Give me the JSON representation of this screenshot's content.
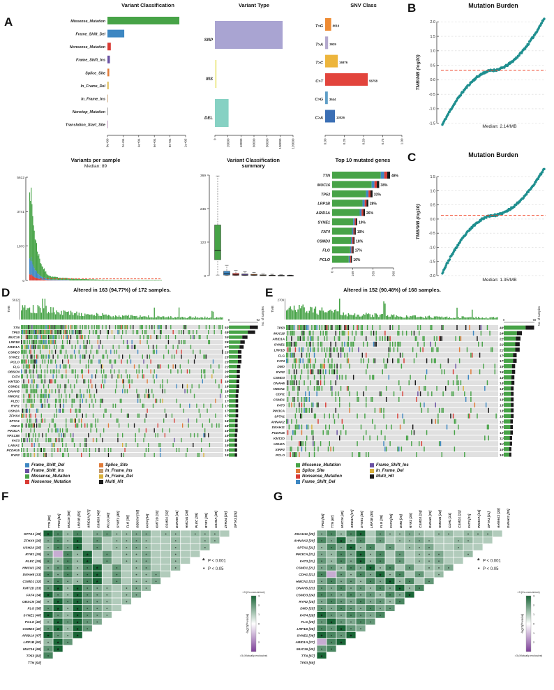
{
  "figure": {
    "panels": {
      "A": "A",
      "B": "B",
      "C": "C",
      "D": "D",
      "E": "E",
      "F": "F",
      "G": "G"
    }
  },
  "colors": {
    "vc": {
      "Missense_Mutation": "#47A347",
      "Frame_Shift_Del": "#3D87C2",
      "Nonsense_Mutation": "#D93B34",
      "Frame_Shift_Ins": "#6A51A3",
      "Splice_Site": "#E07B39",
      "In_Frame_Del": "#D9B13B",
      "In_Frame_Ins": "#C49A6C",
      "Nonstop_Mutation": "#8C8C8C",
      "Translation_Start_Site": "#B78CB7",
      "Multi_Hit": "#1A1A1A"
    },
    "snv": {
      "T>G": "#EE8B33",
      "T>A": "#B3A8CE",
      "T>C": "#EDB53C",
      "C>T": "#E2443C",
      "C>G": "#5F9EC7",
      "C>A": "#3B6FB5"
    },
    "vt": {
      "SNP": "#A9A4D2",
      "INS": "#F1EFA9",
      "DEL": "#86D1C3"
    },
    "tmb_dot": "#1F8F8F",
    "median_line": "#F04124",
    "heat_pos": "#1A6637",
    "heat_neg": "#7D3F98",
    "onco_bg": "#E0E0E0"
  },
  "chart_data": {
    "panelA": {
      "variant_classification": {
        "type": "bar",
        "title": "Variant Classification",
        "categories": [
          "Missense_Mutation",
          "Frame_Shift_Del",
          "Nonsense_Mutation",
          "Frame_Shift_Ins",
          "Splice_Site",
          "In_Frame_Del",
          "In_Frame_Ins",
          "Nonstop_Mutation",
          "Translation_Start_Site"
        ],
        "values": [
          92000,
          21500,
          4300,
          3100,
          2300,
          1500,
          700,
          280,
          150
        ],
        "xmax": 100000,
        "xticks": [
          "0e+00",
          "2e+04",
          "4e+04",
          "6e+04",
          "8e+04",
          "1e+05"
        ]
      },
      "variant_type": {
        "type": "bar",
        "title": "Variant Type",
        "categories": [
          "SNP",
          "INS",
          "DEL"
        ],
        "values": [
          104000,
          2600,
          21000
        ],
        "xmax": 120000,
        "xticks": [
          "0",
          "20000",
          "40000",
          "60000",
          "80000",
          "100000",
          "120000"
        ]
      },
      "snv_class": {
        "type": "bar",
        "title": "SNV Class",
        "categories": [
          "T>G",
          "T>A",
          "T>C",
          "C>T",
          "C>G",
          "C>A"
        ],
        "values": [
          8019,
          3929,
          16876,
          56758,
          3544,
          13026
        ],
        "xticks": [
          "0.00",
          "0.25",
          "0.50",
          "0.75",
          "1.00"
        ],
        "xmax_fraction": 1.0
      },
      "variants_per_sample": {
        "type": "bar",
        "title": "Variants per sample",
        "median_label": "Median: 89",
        "median": 89,
        "ymax": 5612,
        "yticks": [
          "0",
          "1870",
          "3741",
          "5612"
        ],
        "n": 172
      },
      "classification_summary": {
        "type": "boxplot",
        "title_line1": "Variant Classification",
        "title_line2": "summary",
        "ymax": 369,
        "yticks": [
          "0",
          "123",
          "246",
          "369"
        ],
        "boxes": [
          [
            2,
            58,
            92,
            186,
            366
          ],
          [
            0,
            2,
            6,
            16,
            38
          ],
          [
            0,
            1,
            3,
            8,
            19
          ],
          [
            0,
            1,
            2,
            6,
            14
          ],
          [
            0,
            1,
            2,
            5,
            12
          ],
          [
            0,
            0,
            1,
            3,
            8
          ],
          [
            0,
            0,
            1,
            2,
            5
          ],
          [
            0,
            0,
            0,
            1,
            3
          ],
          [
            0,
            0,
            0,
            1,
            2
          ]
        ]
      },
      "top_genes": {
        "type": "bar",
        "title": "Top 10 mutated genes",
        "genes": [
          [
            "TTN",
            480,
            "48%"
          ],
          [
            "MUC16",
            390,
            "38%"
          ],
          [
            "TP53",
            335,
            "33%"
          ],
          [
            "LRP1B",
            300,
            "28%"
          ],
          [
            "ARID1A",
            272,
            "26%"
          ],
          [
            "SYNE1",
            208,
            "19%"
          ],
          [
            "FAT4",
            196,
            "19%"
          ],
          [
            "CSMD3",
            186,
            "18%"
          ],
          [
            "FLG",
            178,
            "17%"
          ],
          [
            "PCLO",
            164,
            "16%"
          ]
        ],
        "xmax": 509,
        "xticks": [
          "0",
          "169",
          "339",
          "509"
        ]
      }
    },
    "panelB": {
      "type": "scatter",
      "title": "Mutation Burden",
      "ylabel": "TMB/MB (log10)",
      "yticks": [
        "-1.5",
        "-1.0",
        "-0.5",
        "0.0",
        "0.5",
        "1.0",
        "1.5",
        "2.0"
      ],
      "ymin": -1.7,
      "ymax": 2.2,
      "vmin": -1.55,
      "vmax": 2.12,
      "median_log": 0.33,
      "median_label": "Median: 2.14/MB",
      "n": 172
    },
    "panelC": {
      "type": "scatter",
      "title": "Mutation Burden",
      "ylabel": "TMB/MB (log10)",
      "yticks": [
        "-2.0",
        "-1.5",
        "-1.0",
        "-0.5",
        "0.0",
        "0.5",
        "1.0",
        "1.5"
      ],
      "ymin": -2.1,
      "ymax": 1.9,
      "vmin": -1.9,
      "vmax": 1.78,
      "median_log": 0.13,
      "median_label": "Median: 1.35/MB",
      "n": 168
    },
    "panelD": {
      "type": "oncoprint",
      "title": "Altered in 163 (94.77%) of 172 samples.",
      "n_samples": 172,
      "tmb_tick": "5612",
      "tmb_label": "TMB",
      "right_axis_label": "No. of samples",
      "right_max": 92,
      "right_ticks": [
        "0",
        "92"
      ],
      "genes": [
        [
          "TTN",
          53
        ],
        [
          "TP53",
          48
        ],
        [
          "MUC16",
          34
        ],
        [
          "LRP1B",
          29
        ],
        [
          "ARID1A",
          27
        ],
        [
          "CSMD3",
          23
        ],
        [
          "SYNE1",
          23
        ],
        [
          "PCLO",
          23
        ],
        [
          "FLG",
          21
        ],
        [
          "OBSCN",
          20
        ],
        [
          "FAT4",
          20
        ],
        [
          "KMT2D",
          19
        ],
        [
          "CSMD1",
          19
        ],
        [
          "DNAH5",
          18
        ],
        [
          "HMCN1",
          17
        ],
        [
          "PLEC",
          17
        ],
        [
          "RYR1",
          17
        ],
        [
          "USH2A",
          17
        ],
        [
          "ZFHX4",
          17
        ],
        [
          "SPTA1",
          16
        ],
        [
          "ANK3",
          16
        ],
        [
          "PIK3CA",
          16
        ],
        [
          "VPS13B",
          15
        ],
        [
          "FAT3",
          15
        ],
        [
          "LAMA1",
          15
        ],
        [
          "PCDH15",
          15
        ],
        [
          "RYR2",
          15
        ]
      ]
    },
    "panelE": {
      "type": "oncoprint",
      "title": "Altered in 152 (90.48%) of 168 samples.",
      "n_samples": 168,
      "tmb_tick": "2709",
      "tmb_label": "TMB",
      "right_axis_label": "No. of samples",
      "right_max": 68,
      "right_ticks": [
        "0",
        "68"
      ],
      "genes": [
        [
          "TP53",
          40
        ],
        [
          "MUC16",
          24
        ],
        [
          "ARID1A",
          22
        ],
        [
          "SYNE1",
          21
        ],
        [
          "LRP1B",
          21
        ],
        [
          "FLG",
          17
        ],
        [
          "FAT4",
          17
        ],
        [
          "DMD",
          15
        ],
        [
          "RYR2",
          15
        ],
        [
          "CSMD3",
          14
        ],
        [
          "DNAH5",
          14
        ],
        [
          "HMCN1",
          13
        ],
        [
          "CDH1",
          13
        ],
        [
          "CSMD1",
          13
        ],
        [
          "FAT3",
          13
        ],
        [
          "PIK3CA",
          13
        ],
        [
          "SPTA1",
          13
        ],
        [
          "AHNAK2",
          12
        ],
        [
          "DNAH11",
          12
        ],
        [
          "PCDH15",
          12
        ],
        [
          "KMT2D",
          11
        ],
        [
          "USH2A",
          11
        ],
        [
          "XIRP2",
          10
        ],
        [
          "PCLO",
          10
        ]
      ]
    },
    "legendD": {
      "items": [
        "Frame_Shift_Del",
        "Frame_Shift_Ins",
        "Missense_Mutation",
        "Nonsense_Mutation",
        "Splice_Site",
        "In_Frame_Ins",
        "In_Frame_Del",
        "Multi_Hit"
      ]
    },
    "legendE": {
      "items": [
        "Missense_Mutation",
        "Splice_Site",
        "Nonsense_Mutation",
        "Frame_Shift_Del",
        "Frame_Shift_Ins",
        "In_Frame_Del",
        "Multi_Hit"
      ]
    },
    "panelF": {
      "type": "heatmap",
      "rows": [
        [
          "SPTA1 [28]",
          "9747356445534434443"
        ],
        [
          "ZFHX4 [29]",
          "574936344543343344"
        ],
        [
          "USH2A [29]",
          "47593634454334334"
        ],
        [
          "RYR1 [29]",
          "5x74936344533433"
        ],
        [
          "PLEC [29]",
          "647493634453343"
        ],
        [
          "HMCN1 [29]",
          "56747936345334"
        ],
        [
          "DNAH5 [31]",
          "7574793634453"
        ],
        [
          "CSMD1 [32]",
          "575479363445"
        ],
        [
          "KMT2D [33]",
          "69496543454"
        ],
        [
          "FAT4 [34]",
          "9649654345"
        ],
        [
          "OBSCN [35]",
          "496965434"
        ],
        [
          "FLG [36]",
          "69496543"
        ],
        [
          "SYNE1 [40]",
          "9649654"
        ],
        [
          "PCLO [40]",
          "496965"
        ],
        [
          "CSMD3 [40]",
          "69496"
        ],
        [
          "ARID1A [47]",
          "9649"
        ],
        [
          "LRP1B [50]",
          "496"
        ],
        [
          "MUC16 [59]",
          "69"
        ],
        [
          "TP53 [82]",
          "7"
        ],
        [
          "TTN [92]",
          ""
        ]
      ],
      "sig": [
        [
          "*",
          "P < 0.001"
        ],
        [
          "•",
          "P < 0.05"
        ]
      ],
      "colorbar": {
        "top_label": ">3 (Co-occurence)",
        "bottom_label": ">3 (Mutually exclusive)",
        "ticks": [
          "3",
          "2",
          "1",
          "0",
          "1",
          "2"
        ],
        "axis_label": "-log10(P-value)"
      }
    },
    "panelG": {
      "type": "heatmap",
      "rows": [
        [
          "DNAH11 [20]",
          "5747936445434434443"
        ],
        [
          "AHNAK2 [20]",
          "759473634454334433"
        ],
        [
          "SPTA1 [21]",
          "47594736344533433"
        ],
        [
          "PIK3CA [21]",
          "5475947363445334"
        ],
        [
          "FAT3 [21]",
          "647594736344533"
        ],
        [
          "CSMD1 [21]",
          "56475947363445"
        ],
        [
          "CDH1 [21]",
          "7x64759473634"
        ],
        [
          "HMCN1 [22]",
          "575647594736"
        ],
        [
          "DNAH5 [23]",
          "65756475947"
        ],
        [
          "CSMD3 [24]",
          "7657564759"
        ],
        [
          "RYR2 [25]",
          "576575647"
        ],
        [
          "DMD [25]",
          "65765756"
        ],
        [
          "FAT4 [28]",
          "9657657"
        ],
        [
          "FLG [29]",
          "696576"
        ],
        [
          "LRP1B [35]",
          "76965"
        ],
        [
          "SYNE1 [36]",
          "9769"
        ],
        [
          "ARID1A [37]",
          "x79"
        ],
        [
          "MUC16 [40]",
          "67"
        ],
        [
          "TTN [67]",
          "9"
        ],
        [
          "TP53 [68]",
          ""
        ]
      ],
      "sig": [
        [
          "*",
          "P < 0.001"
        ],
        [
          "•",
          "P < 0.05"
        ]
      ],
      "colorbar": {
        "top_label": ">3 (Co-occurence)",
        "bottom_label": ">3 (Mutually exclusive)",
        "ticks": [
          "3",
          "2",
          "1",
          "0",
          "1",
          "2"
        ],
        "axis_label": "-log10(P-value)"
      }
    }
  }
}
